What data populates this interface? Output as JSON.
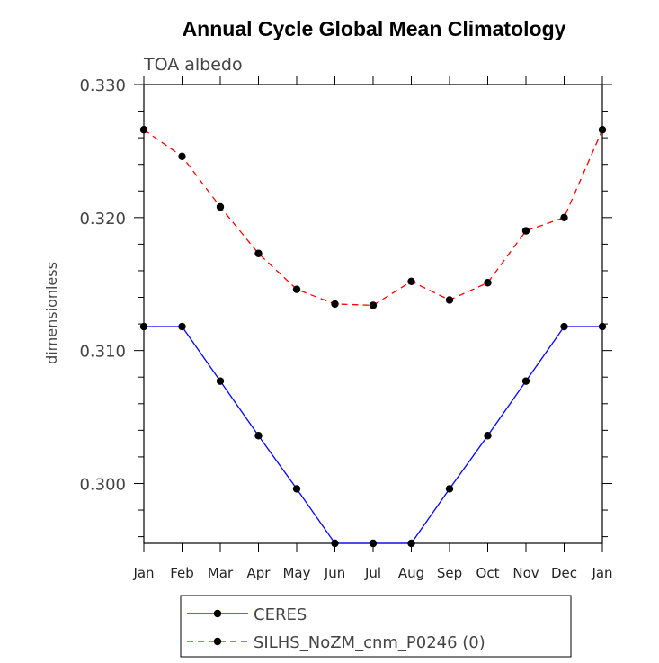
{
  "chart_data": {
    "type": "line",
    "title": "Annual Cycle Global Mean Climatology",
    "subtitle": "TOA albedo",
    "xlabel": "",
    "ylabel": "dimensionless",
    "categories": [
      "Jan",
      "Feb",
      "Mar",
      "Apr",
      "May",
      "Jun",
      "Jul",
      "Aug",
      "Sep",
      "Oct",
      "Nov",
      "Dec",
      "Jan"
    ],
    "ylim": [
      0.2955,
      0.33
    ],
    "yticks": [
      0.3,
      0.31,
      0.32,
      0.33
    ],
    "ytick_labels": [
      "0.300",
      "0.310",
      "0.320",
      "0.330"
    ],
    "grid": false,
    "legend_position": "bottom",
    "series": [
      {
        "name": "CERES",
        "color": "#0000ff",
        "dash": "solid",
        "values": [
          0.3118,
          0.3118,
          0.3077,
          0.3036,
          0.2996,
          0.2955,
          0.2955,
          0.2955,
          0.2996,
          0.3036,
          0.3077,
          0.3118,
          0.3118
        ]
      },
      {
        "name": "SILHS_NoZM_cnm_P0246 (0)",
        "color": "#ff0000",
        "dash": "dashed",
        "values": [
          0.3266,
          0.3246,
          0.3208,
          0.3173,
          0.3146,
          0.3135,
          0.3134,
          0.3152,
          0.3138,
          0.3151,
          0.319,
          0.32,
          0.3266
        ]
      }
    ]
  }
}
